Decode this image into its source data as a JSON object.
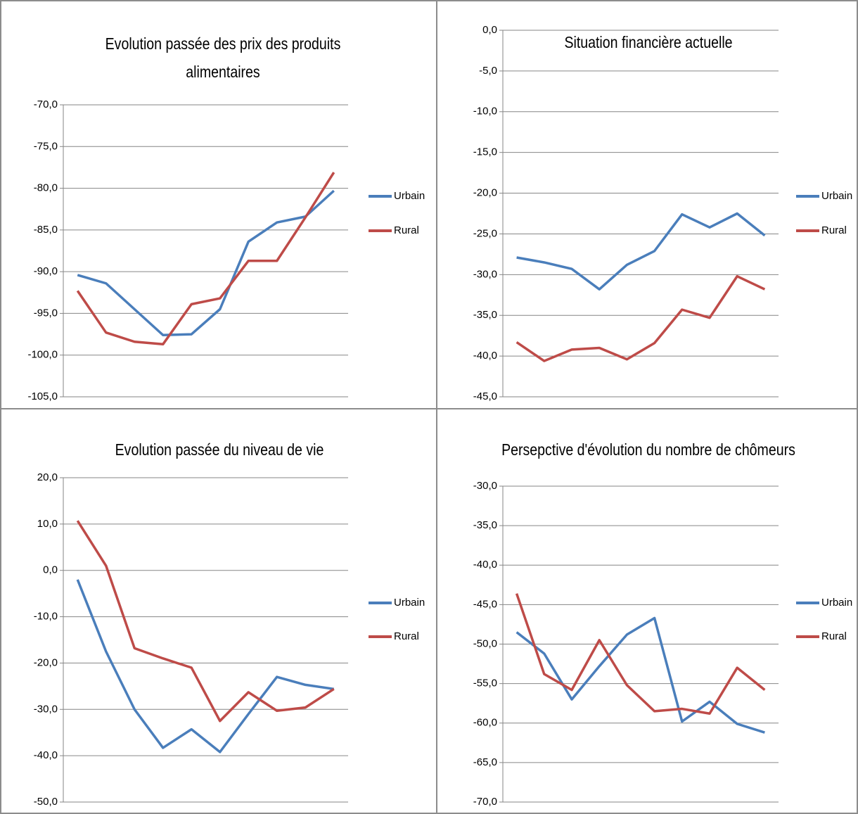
{
  "chart_data": [
    {
      "type": "line",
      "title": "Evolution passée des prix des produits alimentaires",
      "categories": [
        null,
        null,
        null,
        null,
        null,
        null,
        null,
        null,
        null,
        null
      ],
      "series": [
        {
          "name": "Urbain",
          "color": "#4a7ebb",
          "values": [
            -90.4,
            -91.4,
            -94.5,
            -97.6,
            -97.5,
            -94.5,
            -86.4,
            -84.1,
            -83.4,
            -80.3
          ]
        },
        {
          "name": "Rural",
          "color": "#be4b48",
          "values": [
            -92.3,
            -97.3,
            -98.4,
            -98.7,
            -93.9,
            -93.2,
            -88.7,
            -88.7,
            -83.5,
            -78.1
          ]
        }
      ],
      "ylim": [
        -105,
        -70
      ],
      "yticks": [
        {
          "value": -105,
          "label": "-105,0"
        },
        {
          "value": -100,
          "label": "-100,0"
        },
        {
          "value": -95,
          "label": "-95,0"
        },
        {
          "value": -90,
          "label": "-90,0"
        },
        {
          "value": -85,
          "label": "-85,0"
        },
        {
          "value": -80,
          "label": "-80,0"
        },
        {
          "value": -75,
          "label": "-75,0"
        },
        {
          "value": -70,
          "label": "-70,0"
        }
      ],
      "grid": true,
      "legend": "right"
    },
    {
      "type": "line",
      "title": "Situation financière actuelle",
      "categories": [
        null,
        null,
        null,
        null,
        null,
        null,
        null,
        null,
        null,
        null
      ],
      "series": [
        {
          "name": "Urbain",
          "color": "#4a7ebb",
          "values": [
            -27.9,
            -28.5,
            -29.3,
            -31.8,
            -28.8,
            -27.1,
            -22.6,
            -24.2,
            -22.5,
            -25.2
          ]
        },
        {
          "name": "Rural",
          "color": "#be4b48",
          "values": [
            -38.3,
            -40.6,
            -39.2,
            -39.0,
            -40.4,
            -38.4,
            -34.3,
            -35.3,
            -30.2,
            -31.8
          ]
        }
      ],
      "ylim": [
        -45,
        0
      ],
      "yticks": [
        {
          "value": -45,
          "label": "-45,0"
        },
        {
          "value": -40,
          "label": "-40,0"
        },
        {
          "value": -35,
          "label": "-35,0"
        },
        {
          "value": -30,
          "label": "-30,0"
        },
        {
          "value": -25,
          "label": "-25,0"
        },
        {
          "value": -20,
          "label": "-20,0"
        },
        {
          "value": -15,
          "label": "-15,0"
        },
        {
          "value": -10,
          "label": "-10,0"
        },
        {
          "value": -5,
          "label": "-5,0"
        },
        {
          "value": 0,
          "label": "0,0"
        }
      ],
      "grid": true,
      "legend": "right"
    },
    {
      "type": "line",
      "title": "Evolution passée du niveau de vie",
      "categories": [
        null,
        null,
        null,
        null,
        null,
        null,
        null,
        null,
        null,
        null
      ],
      "series": [
        {
          "name": "Urbain",
          "color": "#4a7ebb",
          "values": [
            -2.0,
            -17.5,
            -30.0,
            -38.3,
            -34.3,
            -39.2,
            -31.0,
            -23.0,
            -24.7,
            -25.6
          ]
        },
        {
          "name": "Rural",
          "color": "#be4b48",
          "values": [
            10.7,
            1.0,
            -16.8,
            -19.0,
            -21.0,
            -32.5,
            -26.3,
            -30.3,
            -29.6,
            -25.6
          ]
        }
      ],
      "ylim": [
        -50,
        20
      ],
      "yticks": [
        {
          "value": -50,
          "label": "-50,0"
        },
        {
          "value": -40,
          "label": "-40,0"
        },
        {
          "value": -30,
          "label": "-30,0"
        },
        {
          "value": -20,
          "label": "-20,0"
        },
        {
          "value": -10,
          "label": "-10,0"
        },
        {
          "value": 0,
          "label": "0,0"
        },
        {
          "value": 10,
          "label": "10,0"
        },
        {
          "value": 20,
          "label": "20,0"
        }
      ],
      "grid": true,
      "legend": "right"
    },
    {
      "type": "line",
      "title": "Persepctive d'évolution du nombre de chômeurs",
      "categories": [
        null,
        null,
        null,
        null,
        null,
        null,
        null,
        null,
        null,
        null
      ],
      "series": [
        {
          "name": "Urbain",
          "color": "#4a7ebb",
          "values": [
            -48.5,
            -51.2,
            -57.0,
            -52.8,
            -48.8,
            -46.7,
            -59.8,
            -57.3,
            -60.1,
            -61.2
          ]
        },
        {
          "name": "Rural",
          "color": "#be4b48",
          "values": [
            -43.6,
            -53.8,
            -55.8,
            -49.5,
            -55.2,
            -58.5,
            -58.2,
            -58.8,
            -53.0,
            -55.8
          ]
        }
      ],
      "ylim": [
        -70,
        -30
      ],
      "yticks": [
        {
          "value": -70,
          "label": "-70,0"
        },
        {
          "value": -65,
          "label": "-65,0"
        },
        {
          "value": -60,
          "label": "-60,0"
        },
        {
          "value": -55,
          "label": "-55,0"
        },
        {
          "value": -50,
          "label": "-50,0"
        },
        {
          "value": -45,
          "label": "-45,0"
        },
        {
          "value": -40,
          "label": "-40,0"
        },
        {
          "value": -35,
          "label": "-35,0"
        },
        {
          "value": -30,
          "label": "-30,0"
        }
      ],
      "grid": true,
      "legend": "right"
    }
  ]
}
